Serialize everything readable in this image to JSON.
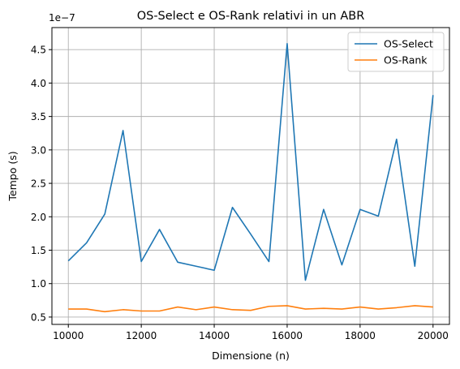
{
  "chart_data": {
    "type": "line",
    "title": "OS-Select e OS-Rank relativi in un ABR",
    "xlabel": "Dimensione (n)",
    "ylabel": "Tempo (s)",
    "y_offset_label": "1e−7",
    "y_scale": 1e-07,
    "xlim": [
      9550,
      20450
    ],
    "ylim": [
      0.39,
      4.83
    ],
    "x_ticks": [
      10000,
      12000,
      14000,
      16000,
      18000,
      20000
    ],
    "y_ticks": [
      0.5,
      1.0,
      1.5,
      2.0,
      2.5,
      3.0,
      3.5,
      4.0,
      4.5
    ],
    "grid": true,
    "legend_position": "top-right",
    "x": [
      10000,
      10500,
      11000,
      11500,
      12000,
      12500,
      13000,
      13500,
      14000,
      14500,
      15000,
      15500,
      16000,
      16500,
      17000,
      17500,
      18000,
      18500,
      19000,
      19500,
      20000
    ],
    "series": [
      {
        "name": "OS-Select",
        "color": "#1f77b4",
        "values": [
          1.34,
          1.61,
          2.04,
          3.29,
          1.33,
          1.81,
          1.32,
          1.26,
          1.2,
          2.14,
          1.74,
          1.33,
          4.59,
          1.05,
          2.11,
          1.28,
          2.11,
          2.01,
          3.16,
          1.26,
          3.82
        ]
      },
      {
        "name": "OS-Rank",
        "color": "#ff7f0e",
        "values": [
          0.62,
          0.62,
          0.58,
          0.61,
          0.59,
          0.59,
          0.65,
          0.61,
          0.65,
          0.61,
          0.6,
          0.66,
          0.67,
          0.62,
          0.63,
          0.62,
          0.65,
          0.62,
          0.64,
          0.67,
          0.65
        ]
      }
    ]
  }
}
